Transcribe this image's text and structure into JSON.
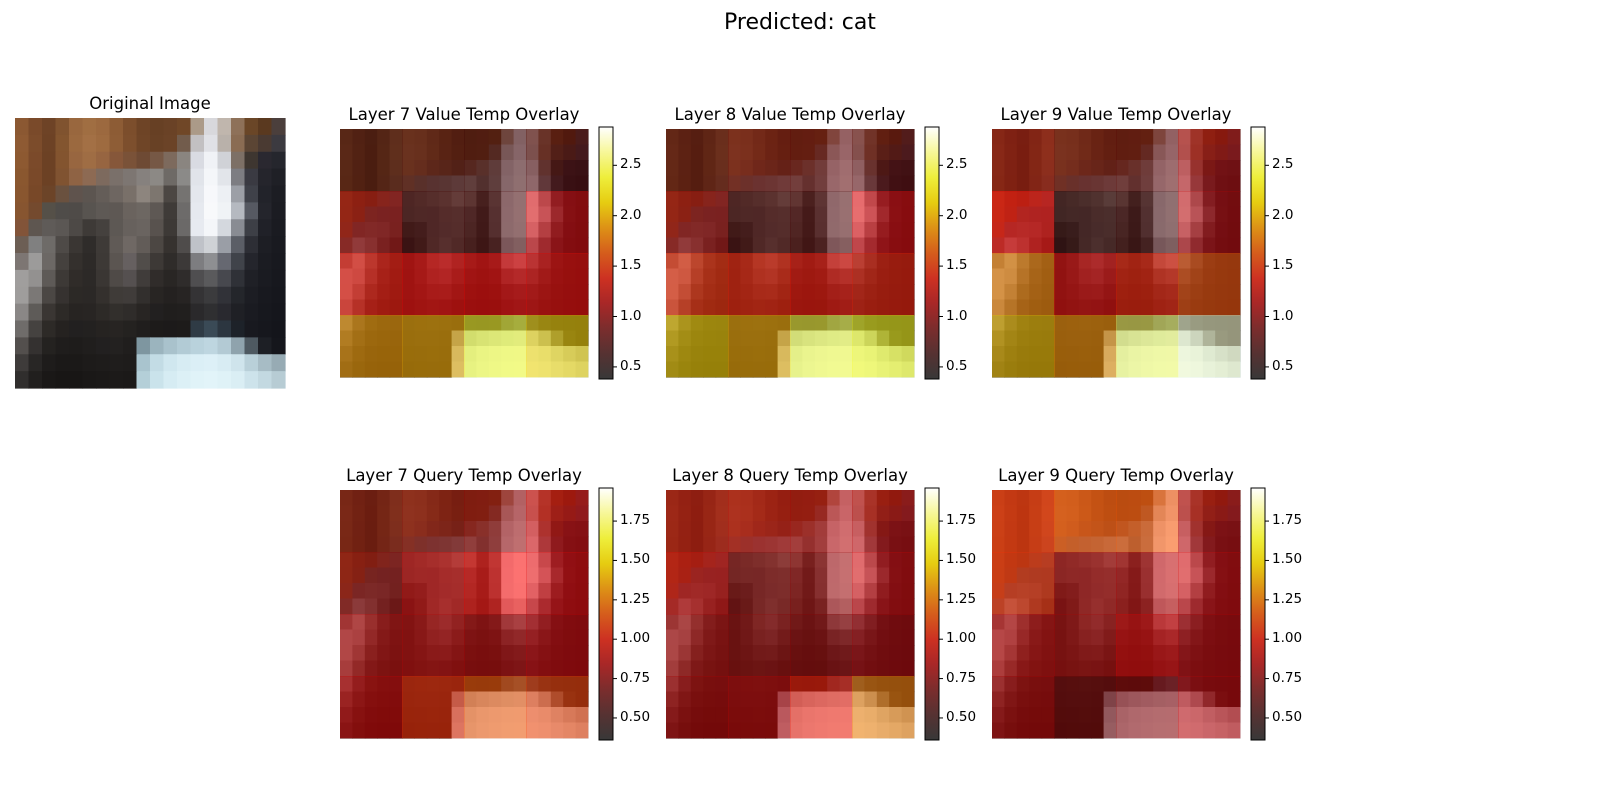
{
  "figure": {
    "suptitle": "Predicted: cat"
  },
  "original": {
    "title": "Original Image",
    "pixels": [
      "8b5832",
      "7a4a2a",
      "6e4326",
      "80532f",
      "99673e",
      "a06e42",
      "9c693f",
      "8d5c35",
      "7c4e2c",
      "6e4426",
      "674024",
      "6a4226",
      "704727",
      "ab9a88",
      "d8d8dc",
      "c0b6ad",
      "8e7159",
      "6a4627",
      "5a391f",
      "4b3f3c",
      "8e5a33",
      "7c4c2b",
      "6d4225",
      "83552f",
      "9b693f",
      "a37045",
      "9e6b40",
      "8e5d36",
      "7d4f2d",
      "6f4527",
      "684125",
      "6b4327",
      "725c4c",
      "c2c0c2",
      "e0e1e6",
      "b9b1aa",
      "8a6c53",
      "5b4534",
      "4a3a32",
      "3c3a40",
      "8d5931",
      "7b4a2a",
      "6c4124",
      "83542f",
      "986640",
      "9f6d44",
      "976541",
      "86573a",
      "7a5238",
      "6e4a34",
      "765845",
      "7d6a5d",
      "8a8580",
      "d9dbe2",
      "f0f2f6",
      "d0d2d7",
      "7d7066",
      "3e3630",
      "2a2830",
      "25262d",
      "8a572f",
      "7a4929",
      "6c4124",
      "805331",
      "8f6344",
      "8d6a53",
      "7d6a5e",
      "7a706a",
      "7d7672",
      "86817e",
      "8c8985",
      "6e6a66",
      "8b8a88",
      "e1e4ea",
      "f4f6f9",
      "e2e5ea",
      "7d7d82",
      "3a3a42",
      "25252c",
      "1f2026",
      "89562f",
      "784828",
      "6c4428",
      "6a513f",
      "5f534d",
      "5c5550",
      "645d58",
      "6e6661",
      "797069",
      "8d857e",
      "7d766f",
      "4c4743",
      "757371",
      "e4e7ed",
      "f7f8fb",
      "edf0f4",
      "9c9fa6",
      "3f4149",
      "22232a",
      "1c1d23",
      "875530",
      "744a2e",
      "555048",
      "4f4c49",
      "4f4b48",
      "585450",
      "5e5955",
      "5e5854",
      "6a635e",
      "6d6762",
      "5e5854",
      "3f3b38",
      "6d6b6a",
      "e6e9ef",
      "f8f9fb",
      "f0f3f6",
      "b5b9c0",
      "565962",
      "24252c",
      "1b1c22",
      "825439",
      "5e5650",
      "5f5b58",
      "5b5754",
      "4d4946",
      "3e3a37",
      "45413e",
      "5d5854",
      "67615d",
      "6a6460",
      "58524e",
      "3d3936",
      "6b6968",
      "e7eaf0",
      "f4f6f9",
      "d4d8de",
      "898c93",
      "3d3f46",
      "202128",
      "1a1b21",
      "6c5e54",
      "808080",
      "6e6b68",
      "4e4a47",
      "3a3633",
      "2f2c2a",
      "3e3a37",
      "605a56",
      "6f6864",
      "625c58",
      "4c4743",
      "36322f",
      "4f4c4b",
      "bfc2c8",
      "cfd2d6",
      "9a9ea6",
      "5b5e66",
      "2d2e35",
      "1d1e24",
      "191a20",
      "7d7673",
      "9c9b9a",
      "6c6865",
      "45413e",
      "34302d",
      "2d2a28",
      "3d3936",
      "5b5551",
      "666060",
      "514d4a",
      "3d3936",
      "2f2c2a",
      "3c3938",
      "7d7d80",
      "8e8f92",
      "666871",
      "40434a",
      "24252c",
      "1b1c22",
      "18191f",
      "a09e9d",
      "939190",
      "5e5a57",
      "3d3936",
      "302c29",
      "2c2927",
      "3a3633",
      "4f4a47",
      "555050",
      "403c3a",
      "302c2a",
      "292624",
      "2f2c2b",
      "4f4e50",
      "5a5a5c",
      "47484e",
      "2f3137",
      "1f2026",
      "1a1b21",
      "17181e",
      "9f9d9c",
      "7b7876",
      "4b4744",
      "363230",
      "2c2926",
      "2b2826",
      "34302d",
      "3f3b38",
      "403c3a",
      "322f2d",
      "282523",
      "242120",
      "272423",
      "343335",
      "3b3b3d",
      "313238",
      "24262b",
      "1c1d23",
      "18191f",
      "16171d",
      "8a8786",
      "5e5b58",
      "3a3633",
      "2d2a27",
      "272422",
      "282523",
      "2d2a27",
      "322f2c",
      "2f2c2a",
      "282523",
      "222020",
      "201e1d",
      "211f1e",
      "2a292b",
      "2f2f31",
      "29292f",
      "1f2025",
      "1a1b21",
      "17181e",
      "15161c",
      "6f6c6a",
      "454240",
      "2d2a27",
      "252220",
      "222020",
      "232120",
      "262321",
      "272422",
      "242220",
      "201e1d",
      "1d1b1a",
      "1c1a1a",
      "1d1b1a",
      "2f3b45",
      "3a4a56",
      "2c3640",
      "1d2229",
      "18191f",
      "16171d",
      "14151b",
      "534f4d",
      "343130",
      "242220",
      "1f1d1c",
      "1e1c1b",
      "201e1d",
      "222020",
      "232120",
      "201e1d",
      "7e96a0",
      "9bb4be",
      "a9c2cc",
      "b2cbd5",
      "b9d2dc",
      "bed6e0",
      "b3cad4",
      "8fa3ad",
      "4e5961",
      "1d1f25",
      "15161c",
      "3e3b3a",
      "282625",
      "1e1c1b",
      "1b1918",
      "1b1918",
      "1d1b1a",
      "1e1c1b",
      "1f1d1c",
      "1e1c1b",
      "a9c4ce",
      "c3dce5",
      "d0e7ef",
      "d7ecf3",
      "dbeff6",
      "ddf0f7",
      "d8ecf3",
      "cfe4ec",
      "b9d0d9",
      "a7bcc5",
      "97abb4",
      "302e2d",
      "211f1e",
      "1a1817",
      "181615",
      "181615",
      "1a1817",
      "1b1918",
      "1c1a19",
      "1b1918",
      "b4cfd8",
      "cae3eb",
      "d6ecf3",
      "dcf0f6",
      "e0f3f8",
      "e2f4f9",
      "dff2f7",
      "daeef4",
      "cde3eb",
      "c3d9e1",
      "b7ccd4"
    ]
  },
  "chart_data": [
    {
      "type": "heatmap",
      "title": "Layer 7 Value Temp Overlay",
      "colormap": "hot",
      "overlay_alpha": 0.55,
      "vmin": 0.38,
      "vmax": 2.88,
      "colorbar_ticks": [
        "0.5",
        "1.0",
        "1.5",
        "2.0",
        "2.5"
      ],
      "colorbar_values": [
        0.5,
        1.0,
        1.5,
        2.0,
        2.5
      ],
      "values": [
        [
          0.55,
          0.6,
          0.6,
          0.65
        ],
        [
          0.95,
          0.62,
          0.62,
          1.15
        ],
        [
          1.35,
          1.3,
          1.3,
          1.32
        ],
        [
          1.9,
          1.95,
          2.35,
          2.1
        ]
      ]
    },
    {
      "type": "heatmap",
      "title": "Layer 8 Value Temp Overlay",
      "colormap": "hot",
      "overlay_alpha": 0.55,
      "vmin": 0.38,
      "vmax": 2.88,
      "colorbar_ticks": [
        "0.5",
        "1.0",
        "1.5",
        "2.0",
        "2.5"
      ],
      "colorbar_values": [
        0.5,
        1.0,
        1.5,
        2.0,
        2.5
      ],
      "values": [
        [
          0.62,
          0.72,
          0.72,
          0.7
        ],
        [
          0.95,
          0.62,
          0.65,
          1.18
        ],
        [
          1.45,
          1.4,
          1.35,
          1.4
        ],
        [
          2.1,
          1.95,
          2.4,
          2.3
        ]
      ]
    },
    {
      "type": "heatmap",
      "title": "Layer 9 Value Temp Overlay",
      "colormap": "hot",
      "overlay_alpha": 0.55,
      "vmin": 0.38,
      "vmax": 2.88,
      "colorbar_ticks": [
        "0.5",
        "1.0",
        "1.5",
        "2.0",
        "2.5"
      ],
      "colorbar_values": [
        0.5,
        1.0,
        1.5,
        2.0,
        2.5
      ],
      "values": [
        [
          0.85,
          0.7,
          0.7,
          1.0
        ],
        [
          1.3,
          0.55,
          0.6,
          1.05
        ],
        [
          1.8,
          1.2,
          1.4,
          1.6
        ],
        [
          2.05,
          1.85,
          2.5,
          2.75
        ]
      ]
    },
    {
      "type": "heatmap",
      "title": "Layer 7 Query Temp Overlay",
      "colormap": "hot",
      "overlay_alpha": 0.55,
      "vmin": 0.36,
      "vmax": 1.96,
      "colorbar_ticks": [
        "0.50",
        "0.75",
        "1.00",
        "1.25",
        "1.50",
        "1.75"
      ],
      "colorbar_values": [
        0.5,
        0.75,
        1.0,
        1.25,
        1.5,
        1.75
      ],
      "values": [
        [
          0.6,
          0.65,
          0.7,
          0.85
        ],
        [
          0.7,
          0.85,
          0.95,
          0.9
        ],
        [
          0.8,
          0.82,
          0.8,
          0.85
        ],
        [
          0.85,
          1.05,
          1.15,
          1.1
        ]
      ]
    },
    {
      "type": "heatmap",
      "title": "Layer 8 Query Temp Overlay",
      "colormap": "hot",
      "overlay_alpha": 0.55,
      "vmin": 0.36,
      "vmax": 1.96,
      "colorbar_ticks": [
        "0.50",
        "0.75",
        "1.00",
        "1.25",
        "1.50",
        "1.75"
      ],
      "colorbar_values": [
        0.5,
        0.75,
        1.0,
        1.25,
        1.5,
        1.75
      ],
      "values": [
        [
          0.75,
          0.78,
          0.78,
          0.8
        ],
        [
          0.85,
          0.68,
          0.72,
          0.85
        ],
        [
          0.78,
          0.72,
          0.72,
          0.78
        ],
        [
          0.8,
          0.82,
          1.0,
          1.25
        ]
      ]
    },
    {
      "type": "heatmap",
      "title": "Layer 9 Query Temp Overlay",
      "colormap": "hot",
      "overlay_alpha": 0.55,
      "vmin": 0.36,
      "vmax": 1.96,
      "colorbar_ticks": [
        "0.50",
        "0.75",
        "1.00",
        "1.25",
        "1.50",
        "1.75"
      ],
      "colorbar_values": [
        0.5,
        0.75,
        1.0,
        1.25,
        1.5,
        1.75
      ],
      "values": [
        [
          1.05,
          1.15,
          1.15,
          0.8
        ],
        [
          1.05,
          0.78,
          0.8,
          0.85
        ],
        [
          0.82,
          0.78,
          0.9,
          0.82
        ],
        [
          0.8,
          0.65,
          0.7,
          0.82
        ]
      ]
    }
  ]
}
